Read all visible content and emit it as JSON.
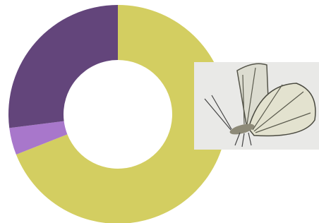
{
  "chart_data": {
    "type": "donut",
    "values": [
      69,
      4,
      27
    ],
    "colors": [
      "#d3ce61",
      "#a877cb",
      "#63457b"
    ]
  }
}
